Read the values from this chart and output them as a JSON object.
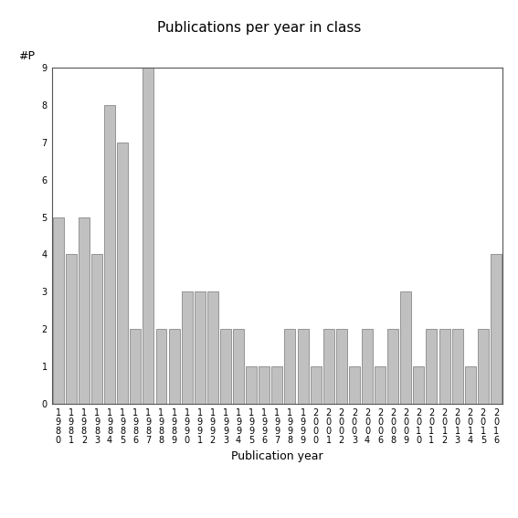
{
  "title": "Publications per year in class",
  "xlabel": "Publication year",
  "ylabel": "#P",
  "categories": [
    "1\n9\n8\n0",
    "1\n9\n8\n1",
    "1\n9\n8\n2",
    "1\n9\n8\n3",
    "1\n9\n8\n4",
    "1\n9\n8\n5",
    "1\n9\n8\n6",
    "1\n9\n8\n7",
    "1\n9\n8\n8",
    "1\n9\n8\n9",
    "1\n9\n9\n0",
    "1\n9\n9\n1",
    "1\n9\n9\n2",
    "1\n9\n9\n3",
    "1\n9\n9\n4",
    "1\n9\n9\n5",
    "1\n9\n9\n6",
    "1\n9\n9\n7",
    "1\n9\n9\n8",
    "1\n9\n9\n9",
    "2\n0\n0\n0",
    "2\n0\n0\n1",
    "2\n0\n0\n2",
    "2\n0\n0\n3",
    "2\n0\n0\n4",
    "2\n0\n0\n6",
    "2\n0\n0\n8",
    "2\n0\n0\n9",
    "2\n0\n1\n0",
    "2\n0\n1\n1",
    "2\n0\n1\n2",
    "2\n0\n1\n3",
    "2\n0\n1\n4",
    "2\n0\n1\n5",
    "2\n0\n1\n6"
  ],
  "values": [
    5,
    4,
    5,
    4,
    8,
    7,
    2,
    9,
    2,
    2,
    3,
    3,
    3,
    2,
    2,
    1,
    1,
    1,
    2,
    2,
    1,
    2,
    2,
    1,
    2,
    1,
    2,
    3,
    1,
    2,
    2,
    2,
    1,
    2,
    4
  ],
  "bar_color": "#c0c0c0",
  "bar_edge_color": "#888888",
  "ylim_max": 9,
  "yticks": [
    0,
    1,
    2,
    3,
    4,
    5,
    6,
    7,
    8,
    9
  ],
  "bg_color": "#ffffff",
  "title_fontsize": 11,
  "axis_label_fontsize": 9,
  "tick_fontsize": 7,
  "ylabel_fontsize": 9
}
